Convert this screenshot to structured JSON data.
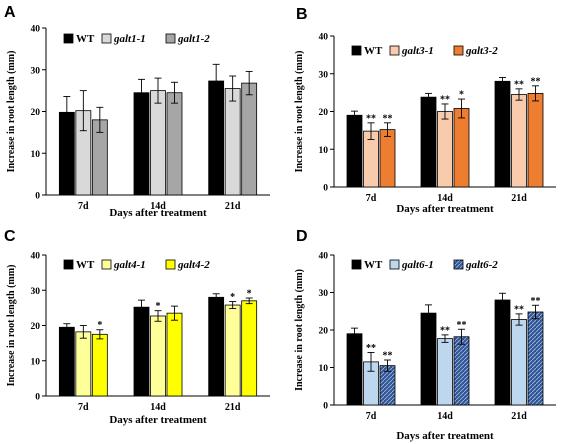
{
  "chart_data": [
    {
      "panel": "A",
      "type": "bar",
      "categories": [
        "7d",
        "14d",
        "21d"
      ],
      "ylabel": "Increase in root length (mm)",
      "xlabel": "Days after treatment",
      "ylim": [
        0,
        40
      ],
      "yticks": [
        0,
        10,
        20,
        30,
        40
      ],
      "legend_placement": "top-left",
      "series": [
        {
          "name": "WT",
          "italic": false,
          "color": "#000000",
          "pattern": "solid",
          "values": [
            19.8,
            24.5,
            27.3
          ],
          "errors": [
            3.8,
            3.2,
            4.0
          ],
          "stars": [
            "",
            "",
            ""
          ]
        },
        {
          "name": "galt1-1",
          "italic": true,
          "color": "#d9d9d9",
          "pattern": "solid",
          "values": [
            20.2,
            25.0,
            25.5
          ],
          "errors": [
            4.8,
            3.0,
            3.0
          ],
          "stars": [
            "",
            "",
            ""
          ]
        },
        {
          "name": "galt1-2",
          "italic": true,
          "color": "#a6a6a6",
          "pattern": "solid",
          "values": [
            18.0,
            24.5,
            26.8
          ],
          "errors": [
            3.0,
            2.5,
            2.8
          ],
          "stars": [
            "",
            "",
            ""
          ]
        }
      ]
    },
    {
      "panel": "B",
      "type": "bar",
      "categories": [
        "7d",
        "14d",
        "21d"
      ],
      "ylabel": "Increase in root length (mm)",
      "xlabel": "Days after treatment",
      "ylim": [
        0,
        40
      ],
      "yticks": [
        0,
        10,
        20,
        30,
        40
      ],
      "legend_placement": "top-left",
      "series": [
        {
          "name": "WT",
          "italic": false,
          "color": "#000000",
          "pattern": "solid",
          "values": [
            19.0,
            23.8,
            28.0
          ],
          "errors": [
            1.1,
            1.0,
            1.0
          ],
          "stars": [
            "",
            "",
            ""
          ]
        },
        {
          "name": "galt3-1",
          "italic": true,
          "color": "#f8cbad",
          "pattern": "solid",
          "values": [
            14.8,
            20.0,
            24.5
          ],
          "errors": [
            2.2,
            2.0,
            1.5
          ],
          "stars": [
            "**",
            "**",
            "**"
          ]
        },
        {
          "name": "galt3-2",
          "italic": true,
          "color": "#ed7d31",
          "pattern": "solid",
          "values": [
            15.2,
            20.8,
            24.8
          ],
          "errors": [
            1.8,
            2.5,
            2.0
          ],
          "stars": [
            "**",
            "*",
            "**"
          ]
        }
      ]
    },
    {
      "panel": "C",
      "type": "bar",
      "categories": [
        "7d",
        "14d",
        "21d"
      ],
      "ylabel": "Increase in root length (mm)",
      "xlabel": "Days after treatment",
      "ylim": [
        0,
        40
      ],
      "yticks": [
        0,
        10,
        20,
        30,
        40
      ],
      "legend_placement": "top-left",
      "series": [
        {
          "name": "WT",
          "italic": false,
          "color": "#000000",
          "pattern": "solid",
          "values": [
            19.5,
            25.2,
            28.0
          ],
          "errors": [
            1.0,
            2.0,
            1.0
          ],
          "stars": [
            "",
            "",
            ""
          ]
        },
        {
          "name": "galt4-1",
          "italic": true,
          "color": "#ffff99",
          "pattern": "solid",
          "values": [
            18.2,
            22.7,
            25.8
          ],
          "errors": [
            1.8,
            1.5,
            1.0
          ],
          "stars": [
            "",
            "*",
            "*"
          ]
        },
        {
          "name": "galt4-2",
          "italic": true,
          "color": "#ffff00",
          "pattern": "solid",
          "values": [
            17.5,
            23.5,
            27.0
          ],
          "errors": [
            1.3,
            2.0,
            0.8
          ],
          "stars": [
            "*",
            "",
            "*"
          ]
        }
      ]
    },
    {
      "panel": "D",
      "type": "bar",
      "categories": [
        "7d",
        "14d",
        "21d"
      ],
      "ylabel": "Increase in root length (mm)",
      "xlabel": "Days after treatment",
      "ylim": [
        0,
        40
      ],
      "yticks": [
        0,
        10,
        20,
        30,
        40
      ],
      "legend_placement": "top-left",
      "series": [
        {
          "name": "WT",
          "italic": false,
          "color": "#000000",
          "pattern": "solid",
          "values": [
            19.0,
            24.5,
            28.0
          ],
          "errors": [
            1.5,
            2.2,
            1.8
          ],
          "stars": [
            "",
            "",
            ""
          ]
        },
        {
          "name": "galt6-1",
          "italic": true,
          "color": "#bdd7ee",
          "pattern": "solid",
          "values": [
            11.5,
            17.7,
            22.8
          ],
          "errors": [
            2.5,
            1.0,
            1.5
          ],
          "stars": [
            "**",
            "**",
            "**"
          ]
        },
        {
          "name": "galt6-2",
          "italic": true,
          "color": "#2f5597",
          "pattern": "hatch",
          "values": [
            10.5,
            18.2,
            24.8
          ],
          "errors": [
            1.5,
            2.0,
            1.8
          ],
          "stars": [
            "**",
            "**",
            "**"
          ]
        }
      ]
    }
  ]
}
